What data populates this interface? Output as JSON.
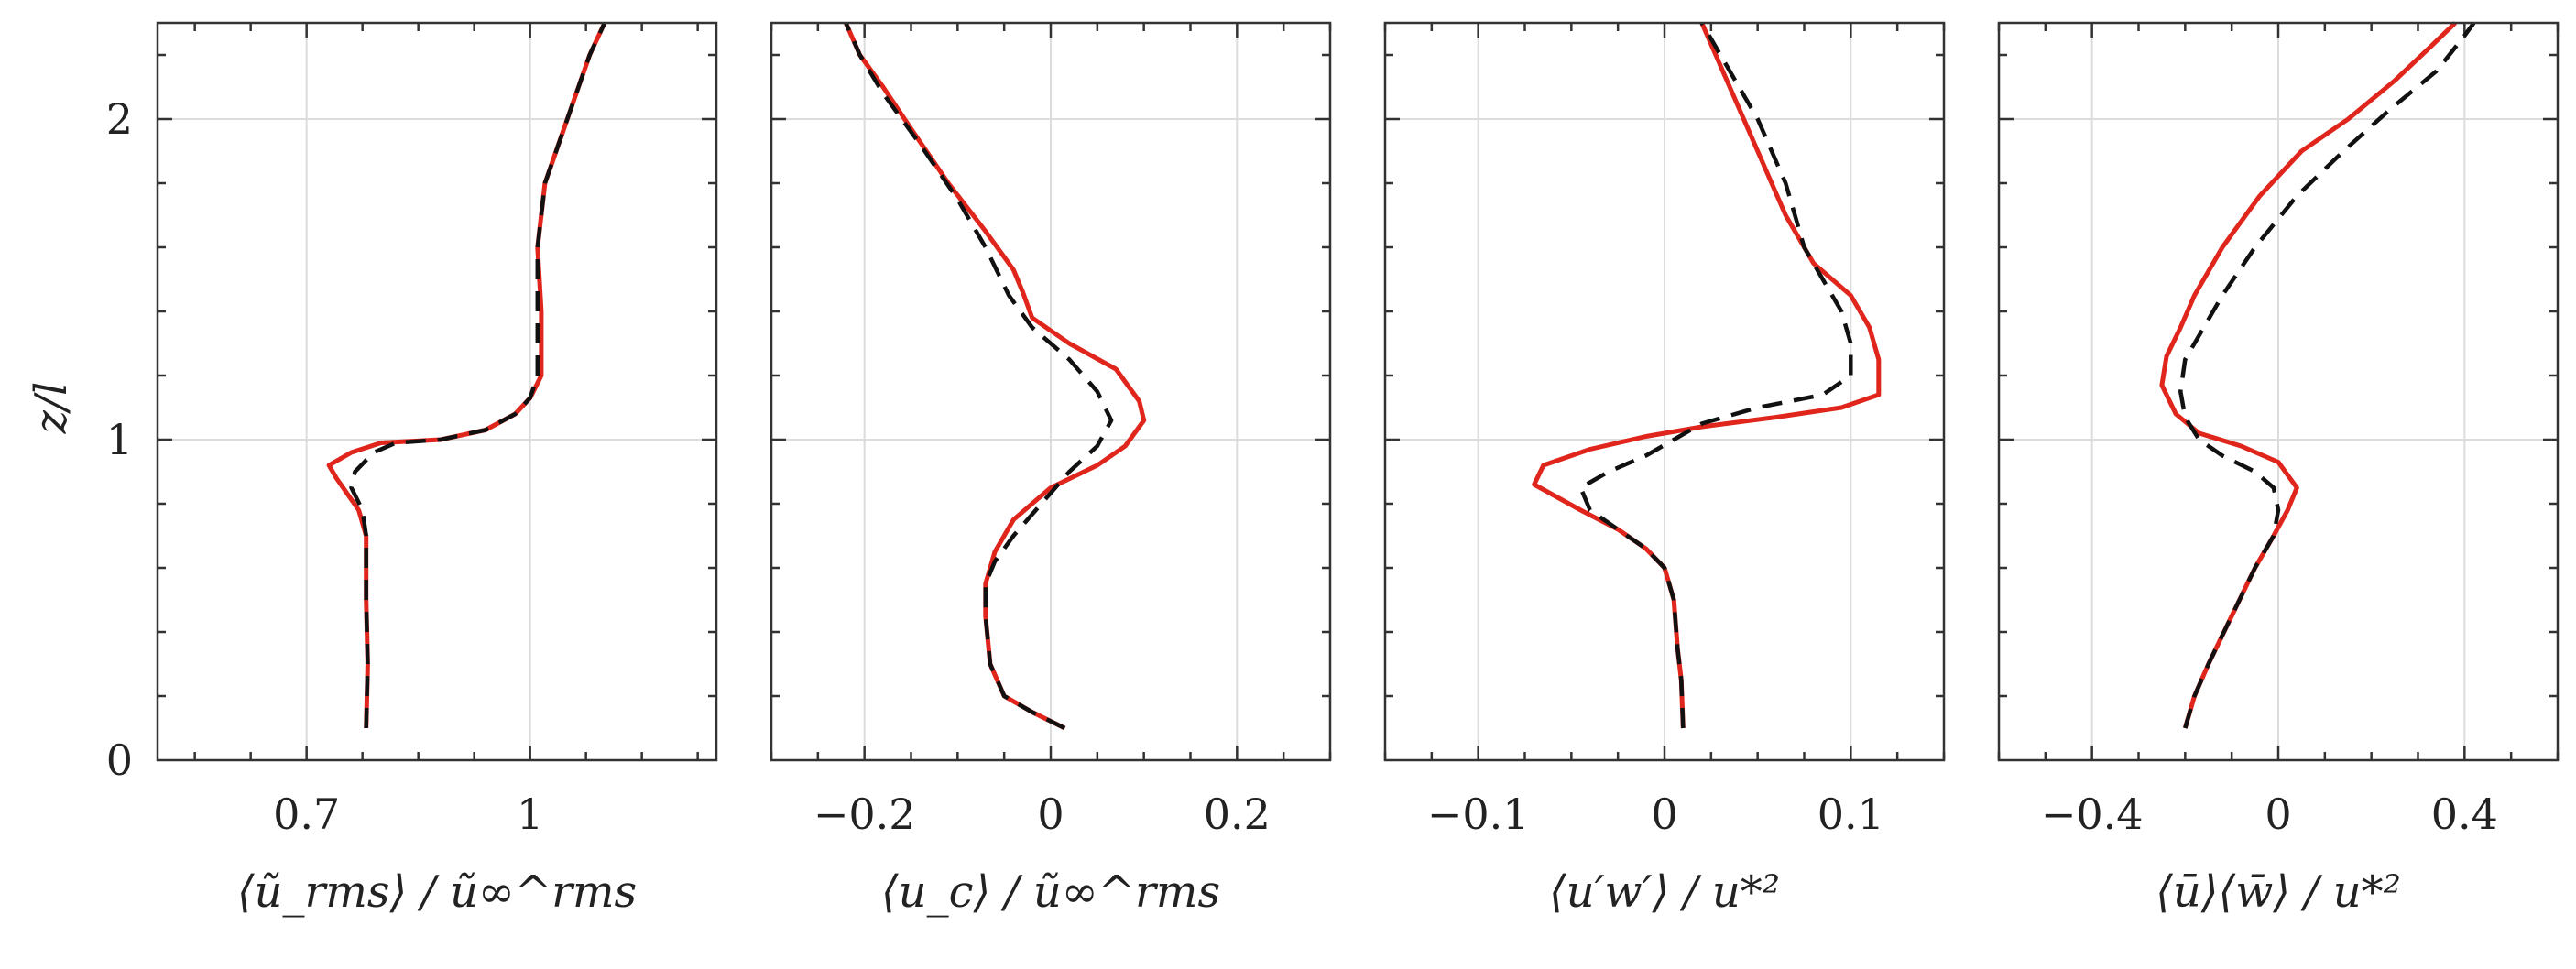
{
  "figure": {
    "ylabel": "z/l",
    "yticks": [
      0,
      1,
      2
    ],
    "ylim": [
      0,
      2.3
    ]
  },
  "styles": {
    "solid_color": "#e0261c",
    "dashed_color": "#111111"
  },
  "chart_data": [
    {
      "type": "line",
      "xlabel": "⟨ũ_rms⟩ / ũ∞^rms",
      "xlim": [
        0.5,
        1.25
      ],
      "xticks": [
        0.7,
        1
      ],
      "xtick_labels": [
        "0.7",
        "1"
      ],
      "series": [
        {
          "name": "solid",
          "style": "solid",
          "points": [
            [
              0.78,
              0.1
            ],
            [
              0.782,
              0.3
            ],
            [
              0.78,
              0.5
            ],
            [
              0.78,
              0.7
            ],
            [
              0.77,
              0.78
            ],
            [
              0.74,
              0.88
            ],
            [
              0.73,
              0.92
            ],
            [
              0.76,
              0.96
            ],
            [
              0.8,
              0.99
            ],
            [
              0.88,
              1.0
            ],
            [
              0.94,
              1.03
            ],
            [
              0.98,
              1.08
            ],
            [
              1.0,
              1.13
            ],
            [
              1.015,
              1.2
            ],
            [
              1.015,
              1.4
            ],
            [
              1.01,
              1.6
            ],
            [
              1.02,
              1.8
            ],
            [
              1.05,
              2.0
            ],
            [
              1.08,
              2.2
            ],
            [
              1.1,
              2.3
            ]
          ]
        },
        {
          "name": "dashed",
          "style": "dashed",
          "points": [
            [
              0.78,
              0.1
            ],
            [
              0.782,
              0.3
            ],
            [
              0.78,
              0.5
            ],
            [
              0.78,
              0.7
            ],
            [
              0.775,
              0.78
            ],
            [
              0.76,
              0.85
            ],
            [
              0.765,
              0.9
            ],
            [
              0.79,
              0.96
            ],
            [
              0.82,
              0.99
            ],
            [
              0.88,
              1.0
            ],
            [
              0.94,
              1.03
            ],
            [
              0.98,
              1.08
            ],
            [
              1.0,
              1.13
            ],
            [
              1.01,
              1.2
            ],
            [
              1.01,
              1.4
            ],
            [
              1.01,
              1.6
            ],
            [
              1.02,
              1.8
            ],
            [
              1.05,
              2.0
            ],
            [
              1.08,
              2.2
            ],
            [
              1.1,
              2.3
            ]
          ]
        }
      ]
    },
    {
      "type": "line",
      "xlabel": "⟨u_c⟩ / ũ∞^rms",
      "xlim": [
        -0.3,
        0.3
      ],
      "xticks": [
        -0.2,
        0,
        0.2
      ],
      "xtick_labels": [
        "−0.2",
        "0",
        "0.2"
      ],
      "series": [
        {
          "name": "solid",
          "style": "solid",
          "points": [
            [
              0.015,
              0.1
            ],
            [
              -0.02,
              0.15
            ],
            [
              -0.05,
              0.2
            ],
            [
              -0.065,
              0.3
            ],
            [
              -0.07,
              0.45
            ],
            [
              -0.07,
              0.55
            ],
            [
              -0.06,
              0.65
            ],
            [
              -0.04,
              0.75
            ],
            [
              0.0,
              0.85
            ],
            [
              0.05,
              0.92
            ],
            [
              0.08,
              0.98
            ],
            [
              0.1,
              1.06
            ],
            [
              0.095,
              1.12
            ],
            [
              0.07,
              1.22
            ],
            [
              0.02,
              1.3
            ],
            [
              -0.02,
              1.38
            ],
            [
              -0.03,
              1.46
            ],
            [
              -0.04,
              1.53
            ],
            [
              -0.07,
              1.65
            ],
            [
              -0.11,
              1.8
            ],
            [
              -0.15,
              1.97
            ],
            [
              -0.18,
              2.1
            ],
            [
              -0.205,
              2.2
            ],
            [
              -0.22,
              2.3
            ]
          ]
        },
        {
          "name": "dashed",
          "style": "dashed",
          "points": [
            [
              0.015,
              0.1
            ],
            [
              -0.02,
              0.15
            ],
            [
              -0.05,
              0.2
            ],
            [
              -0.065,
              0.3
            ],
            [
              -0.07,
              0.45
            ],
            [
              -0.07,
              0.55
            ],
            [
              -0.06,
              0.62
            ],
            [
              -0.04,
              0.7
            ],
            [
              -0.01,
              0.8
            ],
            [
              0.02,
              0.9
            ],
            [
              0.05,
              0.98
            ],
            [
              0.065,
              1.06
            ],
            [
              0.05,
              1.15
            ],
            [
              0.02,
              1.25
            ],
            [
              -0.02,
              1.35
            ],
            [
              -0.045,
              1.45
            ],
            [
              -0.07,
              1.6
            ],
            [
              -0.1,
              1.75
            ],
            [
              -0.14,
              1.92
            ],
            [
              -0.18,
              2.08
            ],
            [
              -0.205,
              2.2
            ],
            [
              -0.22,
              2.3
            ]
          ]
        }
      ]
    },
    {
      "type": "line",
      "xlabel": "⟨u′w′⟩ / u*²",
      "xlim": [
        -0.15,
        0.15
      ],
      "xticks": [
        -0.1,
        0,
        0.1
      ],
      "xtick_labels": [
        "−0.1",
        "0",
        "0.1"
      ],
      "series": [
        {
          "name": "solid",
          "style": "solid",
          "points": [
            [
              0.01,
              0.1
            ],
            [
              0.009,
              0.25
            ],
            [
              0.007,
              0.35
            ],
            [
              0.005,
              0.5
            ],
            [
              0.0,
              0.6
            ],
            [
              -0.01,
              0.66
            ],
            [
              -0.025,
              0.72
            ],
            [
              -0.045,
              0.78
            ],
            [
              -0.07,
              0.86
            ],
            [
              -0.065,
              0.92
            ],
            [
              -0.04,
              0.97
            ],
            [
              -0.01,
              1.01
            ],
            [
              0.02,
              1.04
            ],
            [
              0.06,
              1.07
            ],
            [
              0.095,
              1.1
            ],
            [
              0.115,
              1.14
            ],
            [
              0.115,
              1.25
            ],
            [
              0.11,
              1.35
            ],
            [
              0.1,
              1.45
            ],
            [
              0.09,
              1.5
            ],
            [
              0.08,
              1.55
            ],
            [
              0.065,
              1.7
            ],
            [
              0.05,
              1.9
            ],
            [
              0.035,
              2.1
            ],
            [
              0.02,
              2.3
            ]
          ]
        },
        {
          "name": "dashed",
          "style": "dashed",
          "points": [
            [
              0.01,
              0.1
            ],
            [
              0.009,
              0.25
            ],
            [
              0.007,
              0.35
            ],
            [
              0.005,
              0.5
            ],
            [
              0.0,
              0.6
            ],
            [
              -0.01,
              0.66
            ],
            [
              -0.025,
              0.72
            ],
            [
              -0.04,
              0.78
            ],
            [
              -0.045,
              0.85
            ],
            [
              -0.03,
              0.9
            ],
            [
              -0.01,
              0.95
            ],
            [
              0.005,
              1.0
            ],
            [
              0.02,
              1.05
            ],
            [
              0.05,
              1.1
            ],
            [
              0.085,
              1.14
            ],
            [
              0.1,
              1.2
            ],
            [
              0.1,
              1.3
            ],
            [
              0.095,
              1.4
            ],
            [
              0.085,
              1.5
            ],
            [
              0.075,
              1.6
            ],
            [
              0.065,
              1.8
            ],
            [
              0.05,
              2.0
            ],
            [
              0.035,
              2.15
            ],
            [
              0.02,
              2.3
            ]
          ]
        }
      ]
    },
    {
      "type": "line",
      "xlabel": "⟨ū⟩⟨w̄⟩ / u*²",
      "xlim": [
        -0.6,
        0.6
      ],
      "xticks": [
        -0.4,
        0,
        0.4
      ],
      "xtick_labels": [
        "−0.4",
        "0",
        "0.4"
      ],
      "series": [
        {
          "name": "solid",
          "style": "solid",
          "points": [
            [
              -0.2,
              0.1
            ],
            [
              -0.18,
              0.2
            ],
            [
              -0.15,
              0.3
            ],
            [
              -0.1,
              0.45
            ],
            [
              -0.05,
              0.6
            ],
            [
              -0.01,
              0.7
            ],
            [
              0.02,
              0.78
            ],
            [
              0.04,
              0.85
            ],
            [
              0.0,
              0.93
            ],
            [
              -0.08,
              0.98
            ],
            [
              -0.17,
              1.02
            ],
            [
              -0.22,
              1.08
            ],
            [
              -0.25,
              1.17
            ],
            [
              -0.24,
              1.26
            ],
            [
              -0.21,
              1.35
            ],
            [
              -0.18,
              1.45
            ],
            [
              -0.12,
              1.6
            ],
            [
              -0.04,
              1.76
            ],
            [
              0.05,
              1.9
            ],
            [
              0.15,
              2.0
            ],
            [
              0.25,
              2.12
            ],
            [
              0.33,
              2.23
            ],
            [
              0.38,
              2.3
            ]
          ]
        },
        {
          "name": "dashed",
          "style": "dashed",
          "points": [
            [
              -0.2,
              0.1
            ],
            [
              -0.18,
              0.2
            ],
            [
              -0.15,
              0.3
            ],
            [
              -0.1,
              0.45
            ],
            [
              -0.05,
              0.6
            ],
            [
              -0.01,
              0.7
            ],
            [
              0.0,
              0.78
            ],
            [
              -0.01,
              0.85
            ],
            [
              -0.05,
              0.9
            ],
            [
              -0.12,
              0.95
            ],
            [
              -0.17,
              1.0
            ],
            [
              -0.2,
              1.07
            ],
            [
              -0.21,
              1.15
            ],
            [
              -0.2,
              1.25
            ],
            [
              -0.16,
              1.35
            ],
            [
              -0.12,
              1.45
            ],
            [
              -0.05,
              1.6
            ],
            [
              0.04,
              1.76
            ],
            [
              0.14,
              1.9
            ],
            [
              0.24,
              2.03
            ],
            [
              0.34,
              2.15
            ],
            [
              0.4,
              2.26
            ],
            [
              0.42,
              2.3
            ]
          ]
        }
      ]
    }
  ]
}
